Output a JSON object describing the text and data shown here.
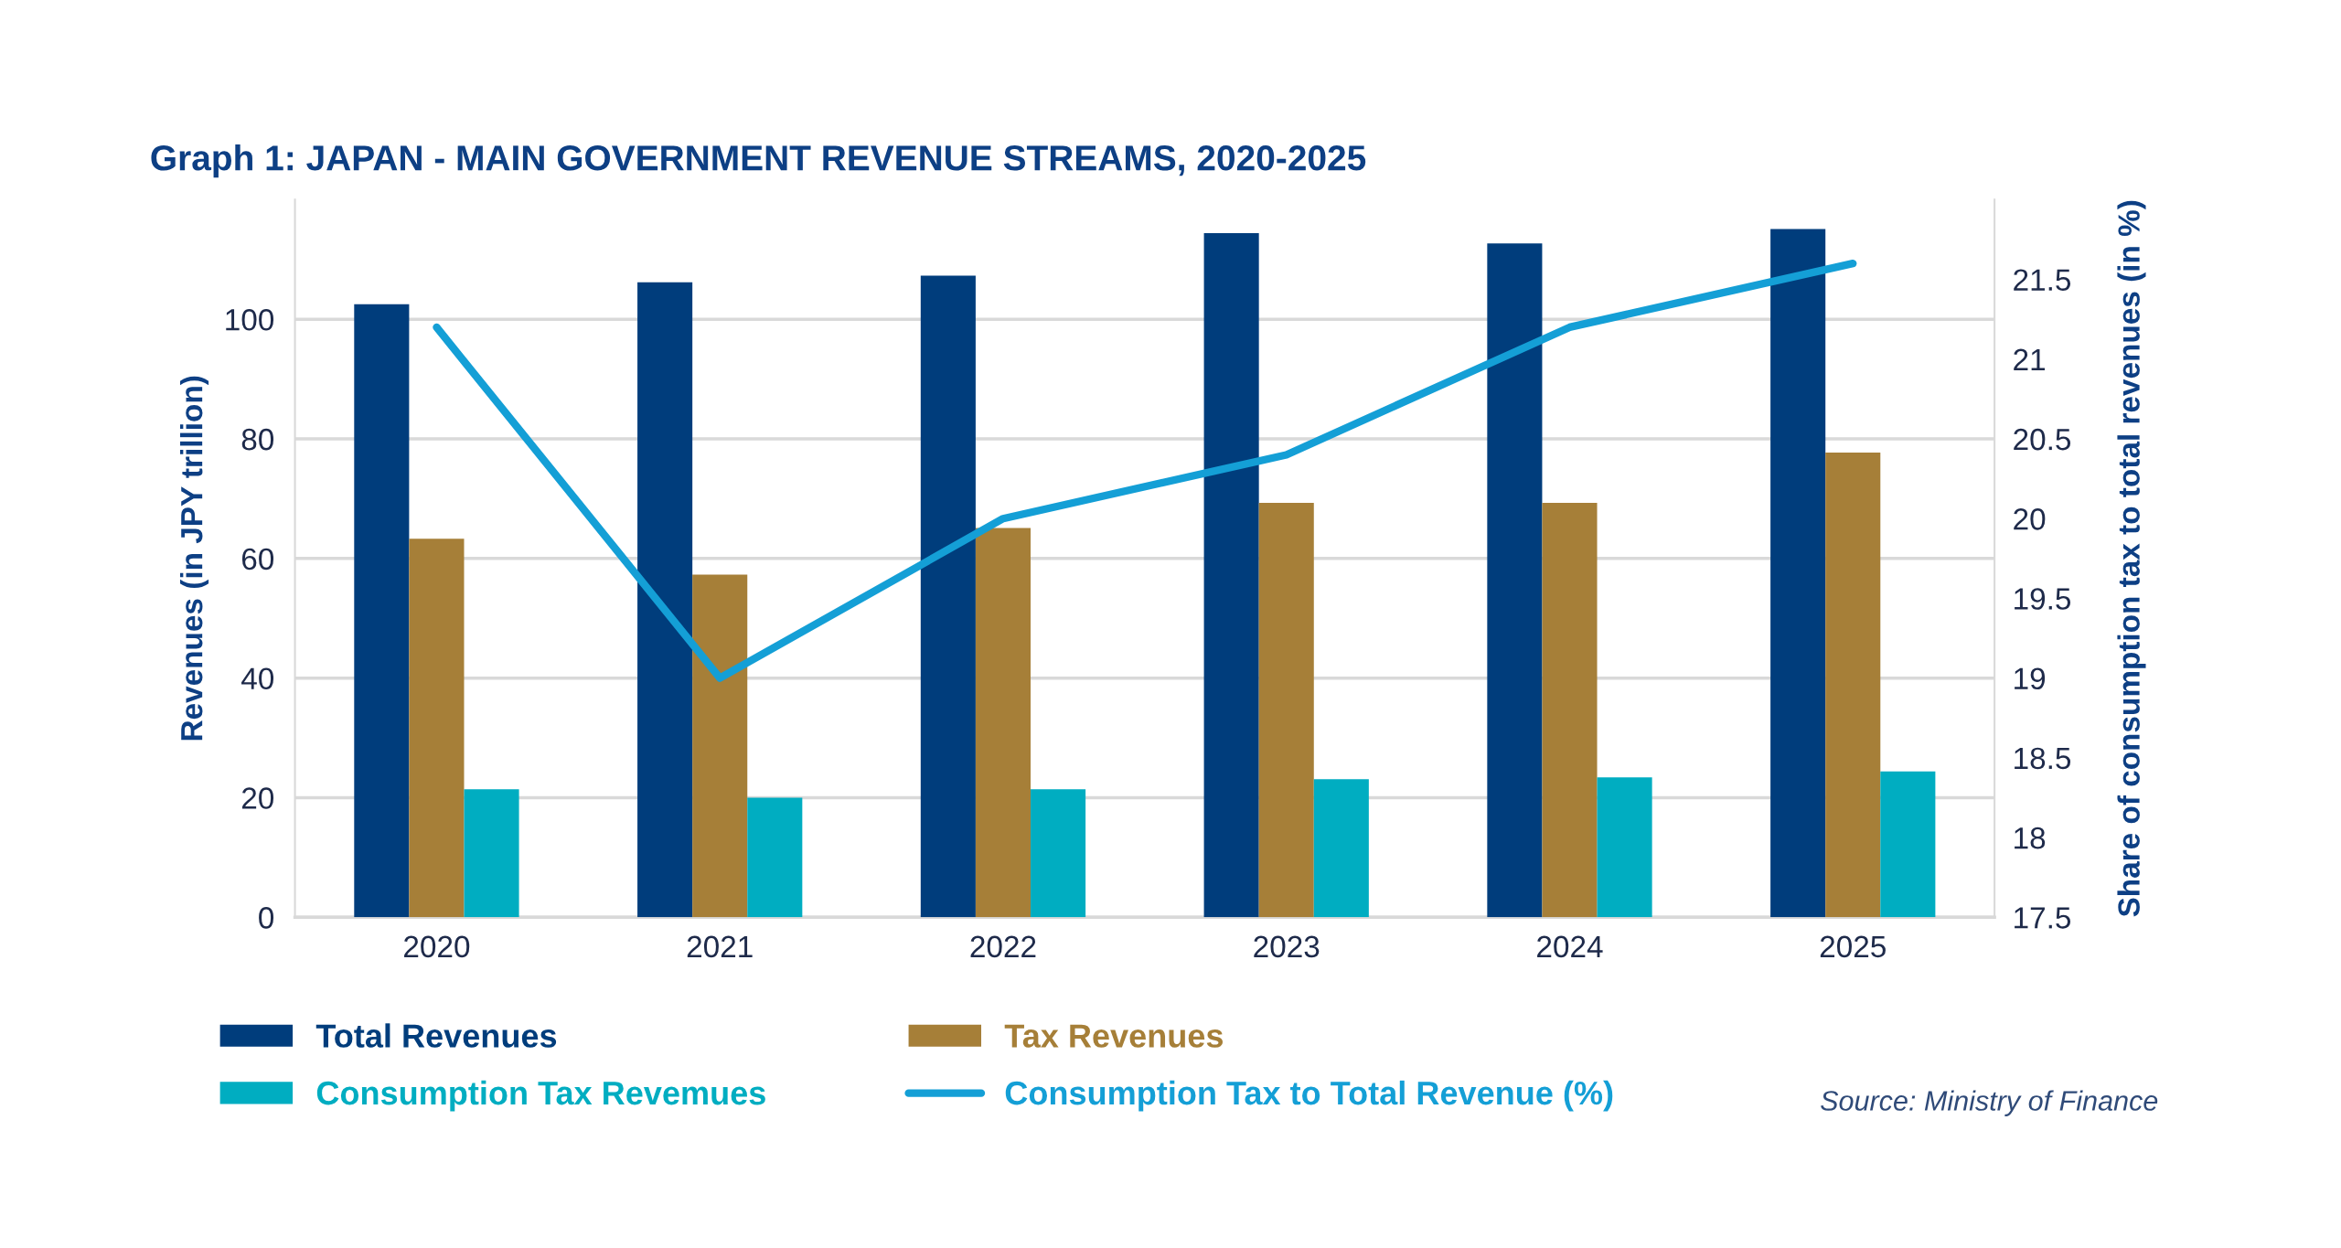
{
  "chart_data": {
    "type": "bar",
    "title": "Graph 1: JAPAN - MAIN GOVERNMENT REVENUE STREAMS, 2020-2025",
    "ylabel": "Revenues (in JPY trillion)",
    "y2label": "Share of consumption tax to total revenues (in %)",
    "categories": [
      "2020",
      "2021",
      "2022",
      "2023",
      "2024",
      "2025"
    ],
    "series": [
      {
        "name": "Total Revenues",
        "color": "#003d7c",
        "values": [
          102.5,
          106.2,
          107.3,
          114.4,
          112.7,
          115.1
        ]
      },
      {
        "name": "Tax Revenues",
        "color": "#a67f38",
        "values": [
          63.3,
          57.3,
          65.1,
          69.3,
          69.3,
          77.7
        ]
      },
      {
        "name": "Consumption Tax Revemues",
        "color": "#00adc1",
        "values": [
          21.4,
          20.0,
          21.4,
          23.1,
          23.4,
          24.4
        ]
      },
      {
        "name": "Consumption Tax to Total Revenue (%)",
        "type": "line",
        "axis": "y2",
        "color": "#149fd6",
        "values": [
          21.2,
          19.0,
          20.0,
          20.4,
          21.2,
          21.6
        ]
      }
    ],
    "ylim": [
      0,
      120
    ],
    "yticks": [
      0,
      20,
      40,
      60,
      80,
      100
    ],
    "y2lim": [
      17.5,
      22
    ],
    "y2ticks": [
      17.5,
      18,
      18.5,
      19,
      19.5,
      20,
      20.5,
      21,
      21.5
    ],
    "grid": "y",
    "legend": "bottom",
    "annotations": [
      "Source: Ministry of Finance"
    ]
  }
}
